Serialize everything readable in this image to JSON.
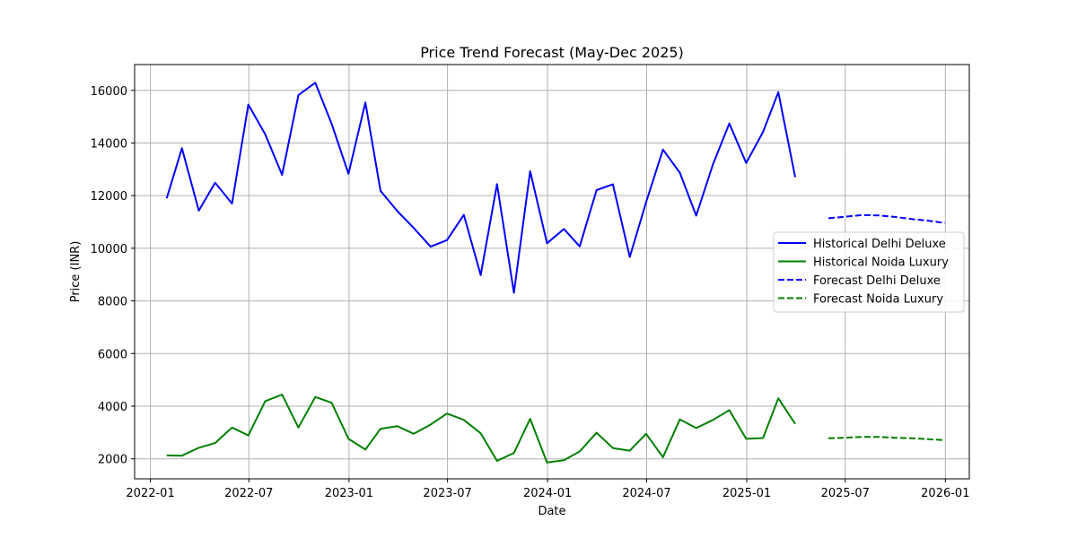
{
  "chart_data": {
    "type": "line",
    "title": "Price Trend Forecast (May-Dec 2025)",
    "xlabel": "Date",
    "ylabel": "Price (INR)",
    "grid": true,
    "legend_position": "center-right",
    "x_ticks": [
      "2022-01",
      "2022-07",
      "2023-01",
      "2023-07",
      "2024-01",
      "2024-07",
      "2025-01",
      "2025-07",
      "2026-01"
    ],
    "y_ticks": [
      2000,
      4000,
      6000,
      8000,
      10000,
      12000,
      14000,
      16000
    ],
    "xlim": [
      "2021-12-03",
      "2026-02-14"
    ],
    "ylim": [
      1240,
      16980
    ],
    "series": [
      {
        "name": "Historical Delhi Deluxe",
        "color": "#0000ff",
        "dash": "solid",
        "x": [
          "2022-01-31",
          "2022-02-28",
          "2022-03-31",
          "2022-04-30",
          "2022-05-31",
          "2022-06-30",
          "2022-07-31",
          "2022-08-31",
          "2022-09-30",
          "2022-10-31",
          "2022-11-30",
          "2022-12-31",
          "2023-01-31",
          "2023-02-28",
          "2023-03-31",
          "2023-04-30",
          "2023-05-31",
          "2023-06-30",
          "2023-07-31",
          "2023-08-31",
          "2023-09-30",
          "2023-10-31",
          "2023-11-30",
          "2023-12-31",
          "2024-01-31",
          "2024-02-29",
          "2024-03-31",
          "2024-04-30",
          "2024-05-31",
          "2024-06-30",
          "2024-07-31",
          "2024-08-31",
          "2024-09-30",
          "2024-10-31",
          "2024-11-30",
          "2024-12-31",
          "2025-01-31",
          "2025-02-28",
          "2025-03-31"
        ],
        "y": [
          11900,
          13800,
          11430,
          12490,
          11700,
          15460,
          14330,
          12790,
          15820,
          16290,
          14730,
          12830,
          15540,
          12180,
          11410,
          10770,
          10060,
          10310,
          11270,
          8980,
          12440,
          8310,
          12930,
          10190,
          10730,
          10070,
          12210,
          12430,
          9670,
          11750,
          13750,
          12870,
          11240,
          13200,
          14740,
          13240,
          14420,
          15930,
          12700
        ]
      },
      {
        "name": "Historical Noida Luxury",
        "color": "#008000",
        "dash": "solid",
        "x": [
          "2022-01-31",
          "2022-02-28",
          "2022-03-31",
          "2022-04-30",
          "2022-05-31",
          "2022-06-30",
          "2022-07-31",
          "2022-08-31",
          "2022-09-30",
          "2022-10-31",
          "2022-11-30",
          "2022-12-31",
          "2023-01-31",
          "2023-02-28",
          "2023-03-31",
          "2023-04-30",
          "2023-05-31",
          "2023-06-30",
          "2023-07-31",
          "2023-08-31",
          "2023-09-30",
          "2023-10-31",
          "2023-11-30",
          "2023-12-31",
          "2024-01-31",
          "2024-02-29",
          "2024-03-31",
          "2024-04-30",
          "2024-05-31",
          "2024-06-30",
          "2024-07-31",
          "2024-08-31",
          "2024-09-30",
          "2024-10-31",
          "2024-11-30",
          "2024-12-31",
          "2025-01-31",
          "2025-02-28",
          "2025-03-31"
        ],
        "y": [
          2130,
          2120,
          2420,
          2600,
          3190,
          2890,
          4190,
          4440,
          3190,
          4350,
          4130,
          2760,
          2350,
          3140,
          3240,
          2950,
          3300,
          3720,
          3480,
          2970,
          1920,
          2220,
          3520,
          1860,
          1950,
          2280,
          2990,
          2410,
          2310,
          2950,
          2060,
          3500,
          3170,
          3480,
          3850,
          2760,
          2790,
          4300,
          3330
        ]
      },
      {
        "name": "Forecast Delhi Deluxe",
        "color": "#0000ff",
        "dash": "dashed",
        "x": [
          "2025-05-31",
          "2025-06-30",
          "2025-07-31",
          "2025-08-31",
          "2025-09-30",
          "2025-10-31",
          "2025-11-30",
          "2025-12-31"
        ],
        "y": [
          11140,
          11200,
          11260,
          11250,
          11190,
          11110,
          11050,
          10960
        ]
      },
      {
        "name": "Forecast Noida Luxury",
        "color": "#008000",
        "dash": "dashed",
        "x": [
          "2025-05-31",
          "2025-06-30",
          "2025-07-31",
          "2025-08-31",
          "2025-09-30",
          "2025-10-31",
          "2025-11-30",
          "2025-12-31"
        ],
        "y": [
          2780,
          2800,
          2830,
          2830,
          2800,
          2780,
          2750,
          2710
        ]
      }
    ]
  }
}
